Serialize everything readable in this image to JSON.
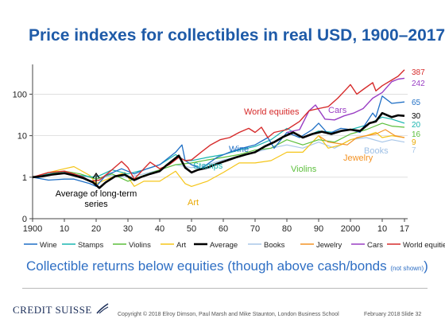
{
  "slide": {
    "title": "Price indexes for collectibles in real USD, 1900–2017",
    "subtitle_main": "Collectible returns below equities (though above cash/bonds",
    "subtitle_small": "(not shown)",
    "subtitle_close": ")",
    "logo": "CREDIT SUISSE",
    "copyright": "Copyright © 2018 Elroy Dimson, Paul Marsh and Mike Staunton, London Business School",
    "date": "February 2018",
    "slide_no": "Slide 32"
  },
  "chart_data": {
    "type": "line",
    "y_scale": "log",
    "ylim": [
      0.1,
      400
    ],
    "xlim": [
      1900,
      2018
    ],
    "x_ticks": [
      {
        "v": 1900,
        "label": "1900"
      },
      {
        "v": 1910,
        "label": "10"
      },
      {
        "v": 1920,
        "label": "20"
      },
      {
        "v": 1930,
        "label": "30"
      },
      {
        "v": 1940,
        "label": "40"
      },
      {
        "v": 1950,
        "label": "50"
      },
      {
        "v": 1960,
        "label": "60"
      },
      {
        "v": 1970,
        "label": "70"
      },
      {
        "v": 1980,
        "label": "80"
      },
      {
        "v": 1990,
        "label": "90"
      },
      {
        "v": 2000,
        "label": "2000"
      },
      {
        "v": 2010,
        "label": "10"
      },
      {
        "v": 2017,
        "label": "17"
      }
    ],
    "y_ticks": [
      {
        "v": 0.1,
        "label": "0"
      },
      {
        "v": 1,
        "label": "1"
      },
      {
        "v": 10,
        "label": "10"
      },
      {
        "v": 100,
        "label": "100"
      }
    ],
    "series": [
      {
        "name": "Wine",
        "color": "#1f6fc5",
        "width": 1.3,
        "end_label": "65",
        "x": [
          1900,
          1905,
          1910,
          1913,
          1918,
          1920,
          1923,
          1928,
          1932,
          1936,
          1940,
          1945,
          1947,
          1948,
          1950,
          1953,
          1958,
          1962,
          1966,
          1970,
          1974,
          1976,
          1980,
          1984,
          1988,
          1990,
          1993,
          1997,
          2000,
          2003,
          2007,
          2008,
          2010,
          2013,
          2017
        ],
        "y": [
          1.0,
          0.85,
          0.9,
          0.9,
          0.7,
          0.6,
          1.1,
          1.6,
          1.2,
          1.6,
          2.0,
          4.0,
          6.0,
          2.5,
          2.0,
          1.6,
          3.0,
          4.0,
          5.0,
          6.0,
          9.0,
          5.0,
          12.0,
          9.0,
          14.0,
          20.0,
          11.0,
          15.0,
          14.0,
          12.0,
          35.0,
          28.0,
          90.0,
          60.0,
          65.0
        ]
      },
      {
        "name": "Stamps",
        "color": "#1ab5b0",
        "width": 1.2,
        "end_label": "20",
        "x": [
          1900,
          1905,
          1910,
          1915,
          1920,
          1925,
          1930,
          1935,
          1940,
          1945,
          1948,
          1950,
          1955,
          1960,
          1965,
          1970,
          1975,
          1980,
          1985,
          1990,
          1995,
          2000,
          2005,
          2010,
          2013,
          2017
        ],
        "y": [
          1.0,
          1.2,
          1.3,
          1.1,
          1.0,
          1.5,
          1.2,
          1.5,
          2.0,
          3.5,
          2.5,
          2.5,
          3.0,
          3.5,
          4.5,
          5.5,
          8.0,
          15.0,
          9.0,
          13.0,
          12.0,
          14.0,
          18.0,
          28.0,
          25.0,
          20.0
        ]
      },
      {
        "name": "Violins",
        "color": "#5cbf3b",
        "width": 1.2,
        "end_label": "16",
        "x": [
          1900,
          1905,
          1910,
          1915,
          1920,
          1925,
          1930,
          1935,
          1940,
          1945,
          1950,
          1955,
          1960,
          1965,
          1970,
          1975,
          1980,
          1985,
          1990,
          1995,
          2000,
          2005,
          2010,
          2013,
          2017
        ],
        "y": [
          1.0,
          1.2,
          1.4,
          1.2,
          0.9,
          1.2,
          0.8,
          1.1,
          1.5,
          2.0,
          2.2,
          2.6,
          3.0,
          3.5,
          4.5,
          5.0,
          8.0,
          6.0,
          8.0,
          7.0,
          11.0,
          14.0,
          20.0,
          17.0,
          16.0
        ]
      },
      {
        "name": "Art",
        "color": "#f5c518",
        "width": 1.2,
        "end_label": "9",
        "x": [
          1900,
          1905,
          1910,
          1913,
          1918,
          1920,
          1925,
          1929,
          1932,
          1935,
          1940,
          1945,
          1948,
          1950,
          1955,
          1960,
          1965,
          1970,
          1975,
          1980,
          1985,
          1990,
          1993,
          1997,
          2000,
          2005,
          2008,
          2010,
          2013,
          2017
        ],
        "y": [
          1.0,
          1.3,
          1.6,
          1.8,
          1.1,
          0.7,
          1.0,
          1.3,
          0.6,
          0.8,
          0.8,
          1.4,
          0.7,
          0.6,
          0.8,
          1.3,
          2.2,
          2.2,
          2.5,
          4.0,
          4.0,
          10.0,
          5.0,
          6.0,
          8.0,
          10.0,
          12.0,
          9.0,
          10.0,
          9.0
        ]
      },
      {
        "name": "Average",
        "color": "#000000",
        "width": 2.6,
        "end_label": "30",
        "x": [
          1900,
          1903,
          1906,
          1910,
          1913,
          1916,
          1919,
          1921,
          1923,
          1926,
          1929,
          1932,
          1934,
          1937,
          1940,
          1942,
          1944,
          1946,
          1948,
          1950,
          1952,
          1955,
          1958,
          1961,
          1964,
          1967,
          1970,
          1973,
          1976,
          1979,
          1982,
          1985,
          1988,
          1991,
          1994,
          1997,
          2000,
          2003,
          2006,
          2008,
          2010,
          2013,
          2015,
          2017
        ],
        "y": [
          1.0,
          1.05,
          1.15,
          1.25,
          1.1,
          0.95,
          0.75,
          0.55,
          0.75,
          1.05,
          1.15,
          0.85,
          1.0,
          1.2,
          1.4,
          1.9,
          2.5,
          3.3,
          1.7,
          1.3,
          1.5,
          1.7,
          2.1,
          2.5,
          3.0,
          3.5,
          4.0,
          5.5,
          7.0,
          9.5,
          12.0,
          9.0,
          11.0,
          12.5,
          11.0,
          13.0,
          14.0,
          13.0,
          20.0,
          22.0,
          35.0,
          28.0,
          31.0,
          30.0
        ]
      },
      {
        "name": "Books",
        "color": "#a9c7e8",
        "width": 1.2,
        "end_label": "7",
        "x": [
          1900,
          1905,
          1910,
          1915,
          1920,
          1925,
          1930,
          1935,
          1940,
          1945,
          1950,
          1955,
          1960,
          1965,
          1970,
          1975,
          1980,
          1985,
          1990,
          1995,
          2000,
          2005,
          2010,
          2013,
          2017
        ],
        "y": [
          1.0,
          1.1,
          1.2,
          1.1,
          0.9,
          1.1,
          1.0,
          1.2,
          1.5,
          2.0,
          1.7,
          2.0,
          2.6,
          3.2,
          4.0,
          5.0,
          6.0,
          5.0,
          7.0,
          5.0,
          8.0,
          9.0,
          7.0,
          8.0,
          7.0
        ]
      },
      {
        "name": "Jewelry",
        "color": "#f39325",
        "width": 1.2,
        "end_label": "9",
        "x": [
          1990,
          1993,
          1996,
          1999,
          2002,
          2005,
          2008,
          2011,
          2014,
          2017
        ],
        "y": [
          10.0,
          7.0,
          6.5,
          6.0,
          9.0,
          10.0,
          11.0,
          14.0,
          10.0,
          9.0
        ]
      },
      {
        "name": "Cars",
        "color": "#9a3fc4",
        "width": 1.4,
        "end_label": "242",
        "x": [
          1980,
          1984,
          1987,
          1989,
          1992,
          1995,
          1998,
          2001,
          2004,
          2007,
          2010,
          2013,
          2015,
          2017
        ],
        "y": [
          12.0,
          14.0,
          40.0,
          55.0,
          25.0,
          24.0,
          30.0,
          35.0,
          45.0,
          80.0,
          110.0,
          200.0,
          230.0,
          242.0
        ]
      },
      {
        "name": "World equities",
        "color": "#d62b2b",
        "width": 1.4,
        "end_label": "387",
        "x": [
          1900,
          1905,
          1910,
          1913,
          1916,
          1918,
          1921,
          1924,
          1928,
          1930,
          1932,
          1935,
          1937,
          1940,
          1943,
          1946,
          1948,
          1950,
          1953,
          1956,
          1959,
          1962,
          1965,
          1968,
          1970,
          1972,
          1974,
          1976,
          1980,
          1984,
          1987,
          1990,
          1993,
          1996,
          1999,
          2000,
          2002,
          2004,
          2007,
          2008,
          2010,
          2013,
          2015,
          2017
        ],
        "y": [
          1.0,
          1.3,
          1.4,
          1.2,
          1.0,
          0.8,
          0.85,
          1.3,
          2.4,
          1.7,
          0.9,
          1.6,
          2.3,
          1.6,
          2.0,
          3.0,
          2.5,
          2.6,
          4.0,
          6.0,
          8.0,
          9.0,
          12.0,
          15.0,
          12.0,
          16.0,
          9.0,
          12.0,
          14.0,
          22.0,
          40.0,
          45.0,
          50.0,
          80.0,
          140.0,
          170.0,
          100.0,
          130.0,
          190.0,
          120.0,
          160.0,
          220.0,
          270.0,
          387.0
        ]
      }
    ],
    "annotations": [
      {
        "text": "World equities",
        "series": "World equities"
      },
      {
        "text": "Cars",
        "series": "Cars"
      },
      {
        "text": "Wine",
        "series": "Wine"
      },
      {
        "text": "Stamps",
        "series": "Stamps"
      },
      {
        "text": "Violins",
        "series": "Violins"
      },
      {
        "text": "Jewelry",
        "series": "Jewelry"
      },
      {
        "text": "Books",
        "series": "Books"
      },
      {
        "text": "Art",
        "series": "Art"
      },
      {
        "text": "Average of long-term series",
        "series": "Average"
      }
    ],
    "legend": {
      "position": "bottom"
    }
  }
}
